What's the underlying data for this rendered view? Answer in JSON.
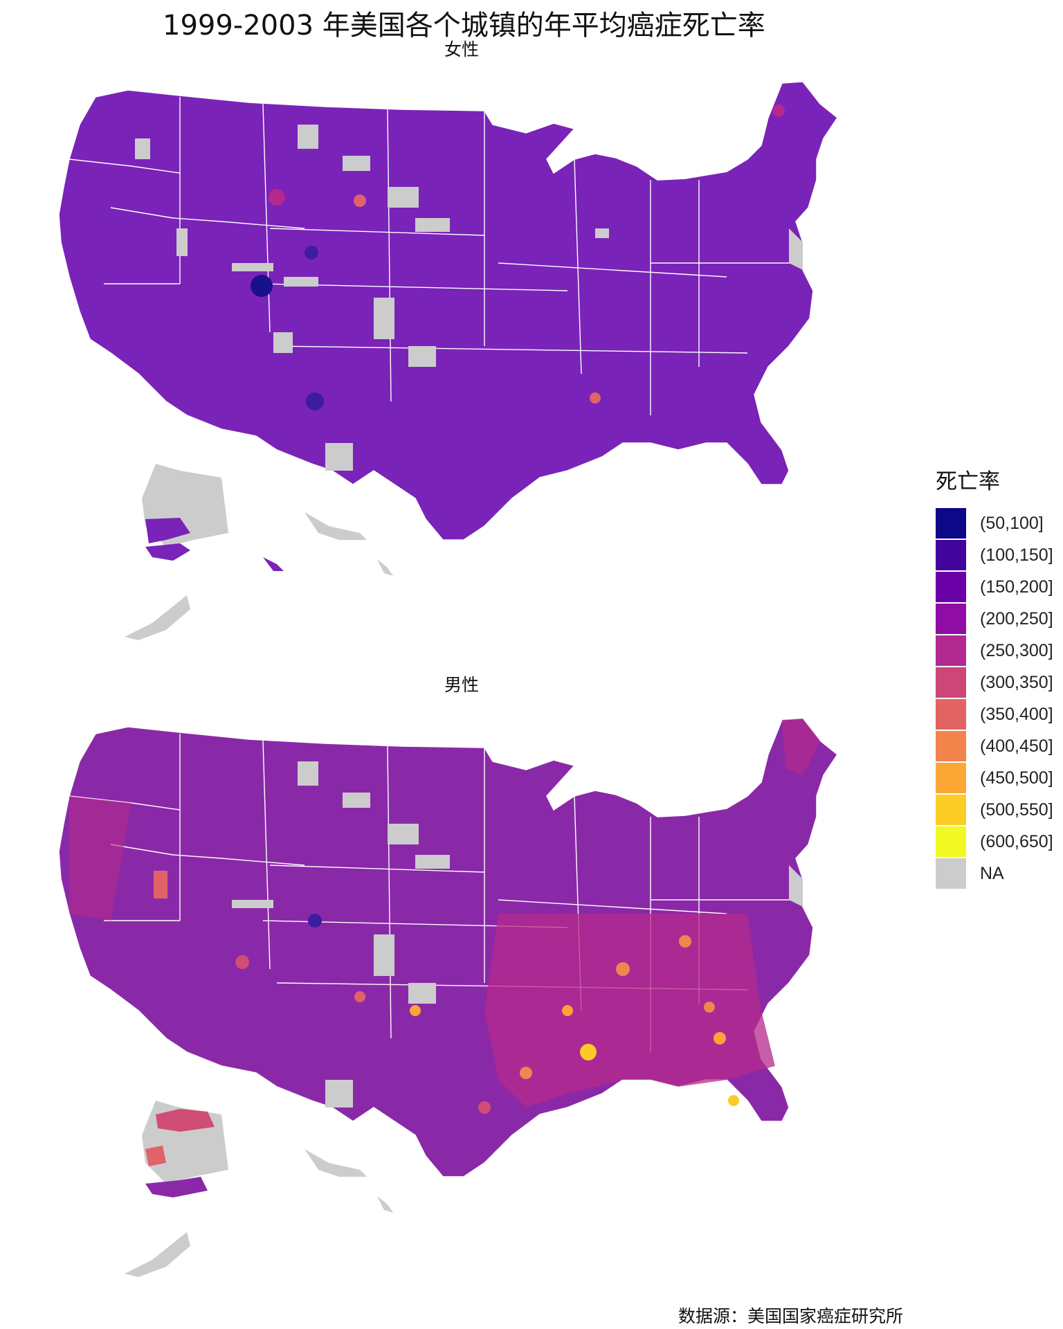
{
  "title": "1999-2003 年美国各个城镇的年平均癌症死亡率",
  "panels": [
    {
      "title": "女性",
      "base_color": "#7a23b8",
      "hotspots": [
        {
          "c": "#1a108c",
          "level": "(50,100]"
        },
        {
          "c": "#3e1c9e",
          "level": "(100,150]"
        },
        {
          "c": "#b4298b",
          "level": "(250,300]"
        },
        {
          "c": "#e0636a",
          "level": "(350,400]"
        }
      ]
    },
    {
      "title": "男性",
      "base_color": "#8a29a8",
      "hotspots": [
        {
          "c": "#b4298b",
          "level": "(250,300]"
        },
        {
          "c": "#d04d75",
          "level": "(300,350]"
        },
        {
          "c": "#e0636a",
          "level": "(350,400]"
        },
        {
          "c": "#f0854f",
          "level": "(400,450]"
        },
        {
          "c": "#fca33a",
          "level": "(450,500]"
        },
        {
          "c": "#fdc927",
          "level": "(500,550]"
        }
      ]
    }
  ],
  "legend": {
    "title": "死亡率",
    "items": [
      {
        "label": "(50,100]",
        "color": "#0d0887"
      },
      {
        "label": "(100,150]",
        "color": "#41049d"
      },
      {
        "label": "(150,200]",
        "color": "#6a00a8"
      },
      {
        "label": "(200,250]",
        "color": "#8f0da4"
      },
      {
        "label": "(250,300]",
        "color": "#b12a90"
      },
      {
        "label": "(300,350]",
        "color": "#cc4778"
      },
      {
        "label": "(350,400]",
        "color": "#e16462"
      },
      {
        "label": "(400,450]",
        "color": "#f2844b"
      },
      {
        "label": "(450,500]",
        "color": "#fca636"
      },
      {
        "label": "(500,550]",
        "color": "#fccd25"
      },
      {
        "label": "(600,650]",
        "color": "#f0f921"
      },
      {
        "label": "NA",
        "color": "#cccccc"
      }
    ]
  },
  "caption": "数据源：美国国家癌症研究所"
}
